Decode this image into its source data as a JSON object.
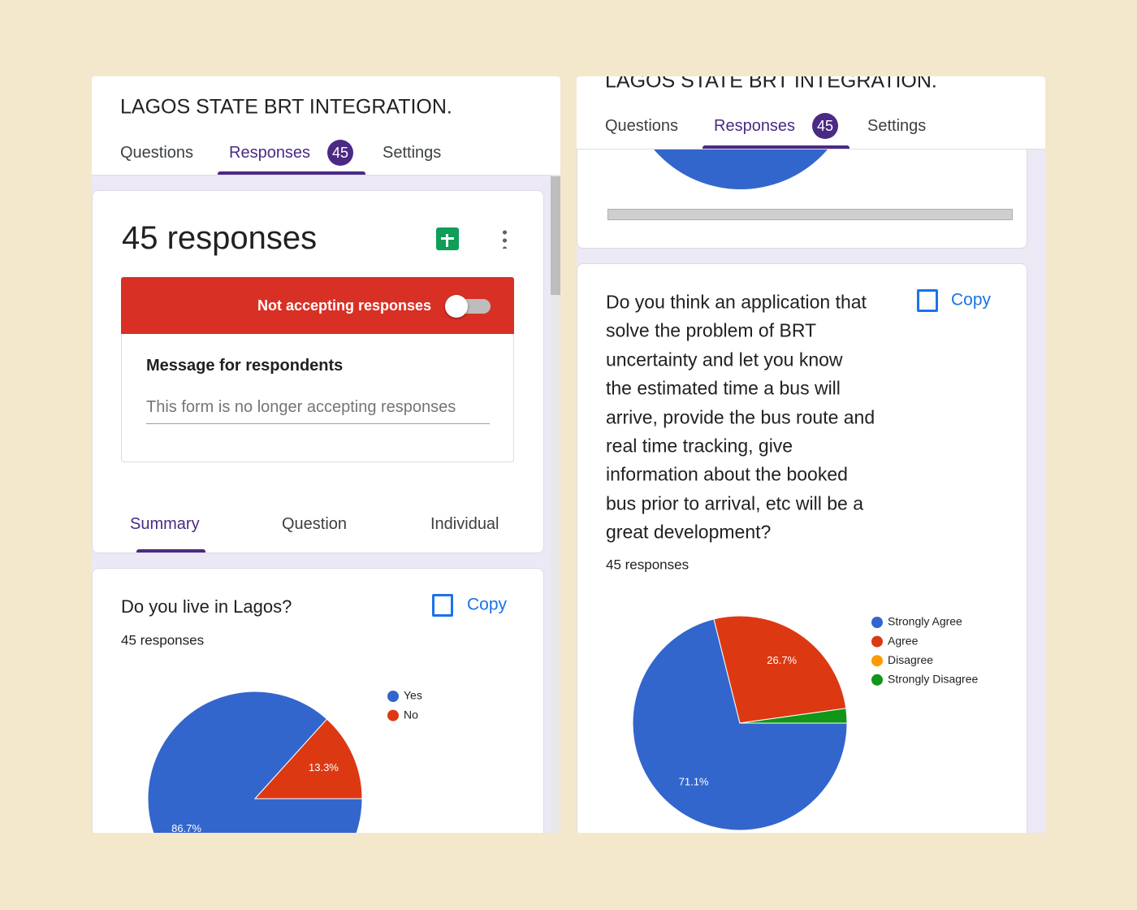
{
  "left": {
    "title": "LAGOS STATE BRT INTEGRATION.",
    "tabs": [
      "Questions",
      "Responses",
      "Settings"
    ],
    "badge": 45,
    "summary": {
      "count": "45 responses",
      "status": "Not accepting responses",
      "message_label": "Message for respondents",
      "message": "This form is no longer accepting responses",
      "tabs": [
        "Summary",
        "Question",
        "Individual"
      ]
    },
    "question": {
      "title": "Do you live in Lagos?",
      "copy": "Copy",
      "responses": "45 responses",
      "chart": {
        "type": "pie",
        "categories": [
          "Yes",
          "No"
        ],
        "values": [
          86.7,
          13.3
        ],
        "value_labels": [
          "86.7%",
          "13.3%"
        ],
        "colors": [
          "#3366cc",
          "#dc3912"
        ]
      }
    }
  },
  "right": {
    "title": "LAGOS STATE BRT INTEGRATION.",
    "tabs": [
      "Questions",
      "Responses",
      "Settings"
    ],
    "badge": 45,
    "question": {
      "lines": [
        "Do you think an application that",
        "solve the problem of BRT",
        "uncertainty and let you know",
        "the estimated time a bus will",
        "arrive, provide the bus route and",
        "real time tracking, give",
        "information about the booked",
        "bus prior to arrival, etc will be a",
        "great development?"
      ],
      "copy": "Copy",
      "responses": "45 responses",
      "chart": {
        "type": "pie",
        "categories": [
          "Strongly Agree",
          "Agree",
          "Disagree",
          "Strongly Disagree"
        ],
        "values": [
          71.1,
          26.7,
          0,
          2.2
        ],
        "value_labels": [
          "71.1%",
          "26.7%",
          null,
          null
        ],
        "colors": [
          "#3366cc",
          "#dc3912",
          "#ff9900",
          "#109618"
        ]
      }
    }
  }
}
